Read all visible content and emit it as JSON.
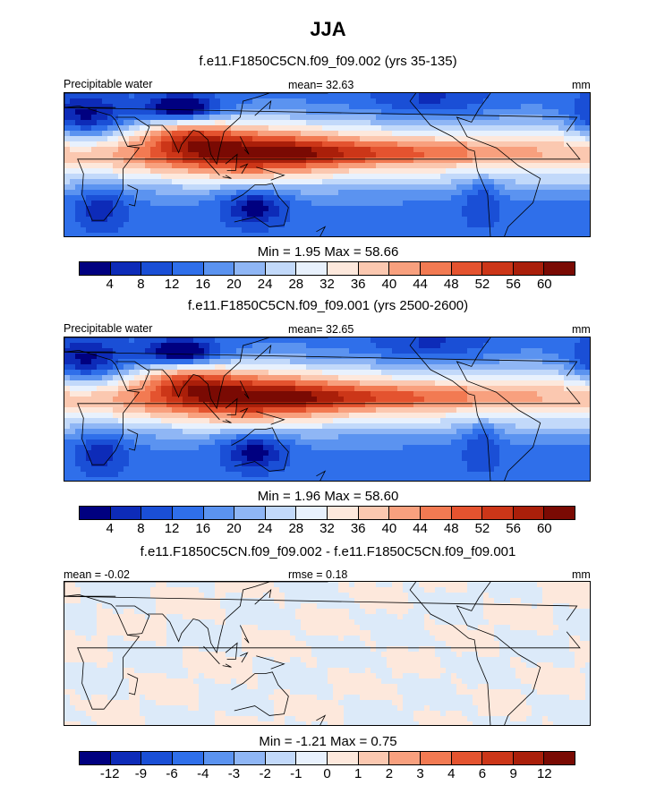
{
  "title": "JJA",
  "colors": [
    "#000080",
    "#0d2bb8",
    "#1a4fd6",
    "#2f6fea",
    "#5b93f0",
    "#8fb6f5",
    "#c2d9fa",
    "#e8f1fd",
    "#fde8dc",
    "#fbc8b0",
    "#f8a07e",
    "#f27a52",
    "#e4532f",
    "#cc3618",
    "#aa1f0a",
    "#7a0a03"
  ],
  "panels": [
    {
      "subtitle": "f.e11.F1850C5CN.f09_f09.002 (yrs 35-135)",
      "left_label": "Precipitable water",
      "center_label": "mean=  32.63",
      "right_label": "mm",
      "field": "climatology",
      "minmax": "Min =   1.95 Max =  58.66",
      "ticks": [
        "4",
        "8",
        "12",
        "16",
        "20",
        "24",
        "28",
        "32",
        "36",
        "40",
        "44",
        "48",
        "52",
        "56",
        "60"
      ]
    },
    {
      "subtitle": "f.e11.F1850C5CN.f09_f09.001 (yrs 2500-2600)",
      "left_label": "Precipitable water",
      "center_label": "mean=  32.65",
      "right_label": "mm",
      "field": "climatology",
      "minmax": "Min =   1.96 Max =  58.60",
      "ticks": [
        "4",
        "8",
        "12",
        "16",
        "20",
        "24",
        "28",
        "32",
        "36",
        "40",
        "44",
        "48",
        "52",
        "56",
        "60"
      ]
    },
    {
      "subtitle": "f.e11.F1850C5CN.f09_f09.002 - f.e11.F1850C5CN.f09_f09.001",
      "left_label": "mean =  -0.02",
      "center_label": "rmse =   0.18",
      "right_label": "mm",
      "field": "difference",
      "minmax": "Min =  -1.21 Max =   0.75",
      "ticks": [
        "-12",
        "-9",
        "-6",
        "-4",
        "-3",
        "-2",
        "-1",
        "0",
        "1",
        "2",
        "3",
        "4",
        "6",
        "9",
        "12"
      ]
    }
  ]
}
